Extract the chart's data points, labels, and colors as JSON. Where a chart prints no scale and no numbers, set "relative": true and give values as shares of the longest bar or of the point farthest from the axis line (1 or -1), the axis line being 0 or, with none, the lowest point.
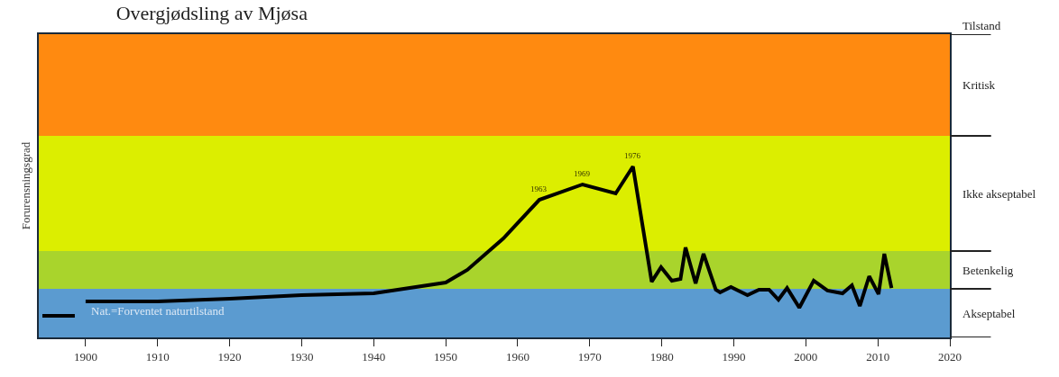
{
  "chart_data": {
    "type": "line",
    "title": "Overgjødsling av Mjøsa",
    "ylabel": "Forurensningsgrad",
    "relative": true,
    "xlim": [
      1893.5,
      2020
    ],
    "xticks": [
      1900,
      1910,
      1920,
      1930,
      1940,
      1950,
      1960,
      1970,
      1980,
      1990,
      2000,
      2010,
      2020
    ],
    "grid": false,
    "marker": "none",
    "line_style": "solid",
    "series": [
      {
        "color": "#000000",
        "x": [
          1894,
          1898.5,
          1899,
          1900,
          1910,
          1920,
          1930,
          1940,
          1950,
          1953,
          1958,
          1963,
          1969,
          1973.6,
          1976,
          1978.6,
          1979.9,
          1981.4,
          1982.6,
          1983.3,
          1984.7,
          1985.8,
          1987.5,
          1988.1,
          1989.6,
          1991.9,
          1993.5,
          1994.9,
          1996.2,
          1997.4,
          1999.1,
          2001.1,
          2003.0,
          2005.1,
          2006.4,
          2007.5,
          2008.8,
          2010.1,
          2010.9,
          2011.9
        ],
        "values": [
          0.126,
          0.126,
          null,
          0.211,
          0.211,
          0.226,
          0.247,
          0.258,
          0.321,
          0.395,
          0.579,
          0.805,
          0.895,
          0.842,
          1,
          0.326,
          0.411,
          0.332,
          0.342,
          0.526,
          0.316,
          0.489,
          0.279,
          0.263,
          0.295,
          0.247,
          0.279,
          0.279,
          0.221,
          0.289,
          0.174,
          0.332,
          0.274,
          0.258,
          0.305,
          0.184,
          0.358,
          0.253,
          0.489,
          0.289
        ]
      }
    ],
    "bands": [
      {
        "axis": "y",
        "from": 0,
        "to": 0.284,
        "label": "Akseptabel",
        "color": "#5b9bd0"
      },
      {
        "axis": "y",
        "from": 0.284,
        "to": 0.505,
        "label": "Betenkelig",
        "color": "#a9d42c"
      },
      {
        "axis": "y",
        "from": 0.505,
        "to": 1.179,
        "label": "Ikke akseptabel",
        "color": "#dcee00"
      },
      {
        "axis": "y",
        "from": 1.179,
        "to": 1.774,
        "label": "Kritisk",
        "color": "#ff8a10"
      }
    ],
    "annotations": [
      "Nat.=Forventet naturtilstand",
      "Tilstand",
      {
        "text": "1963",
        "x": 1963,
        "y": 0.805
      },
      {
        "text": "1969",
        "x": 1969,
        "y": 0.895
      },
      {
        "text": "1976",
        "x": 1976,
        "y": 1
      }
    ]
  }
}
